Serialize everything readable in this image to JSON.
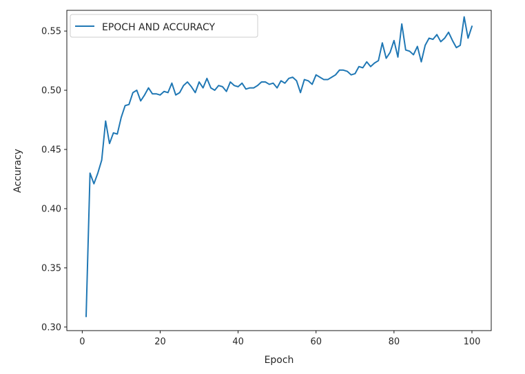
{
  "chart_data": {
    "type": "line",
    "xlabel": "Epoch",
    "ylabel": "Accuracy",
    "xlim": [
      -3.95,
      104.95
    ],
    "ylim": [
      0.297,
      0.5675
    ],
    "xticks": [
      0,
      20,
      40,
      60,
      80,
      100
    ],
    "yticks": [
      0.3,
      0.35,
      0.4,
      0.45,
      0.5,
      0.55
    ],
    "grid": false,
    "legend_position": "top-left",
    "series": [
      {
        "name": "EPOCH AND ACCURACY",
        "color": "#1f77b4",
        "x": [
          1,
          2,
          3,
          4,
          5,
          6,
          7,
          8,
          9,
          10,
          11,
          12,
          13,
          14,
          15,
          16,
          17,
          18,
          19,
          20,
          21,
          22,
          23,
          24,
          25,
          26,
          27,
          28,
          29,
          30,
          31,
          32,
          33,
          34,
          35,
          36,
          37,
          38,
          39,
          40,
          41,
          42,
          43,
          44,
          45,
          46,
          47,
          48,
          49,
          50,
          51,
          52,
          53,
          54,
          55,
          56,
          57,
          58,
          59,
          60,
          61,
          62,
          63,
          64,
          65,
          66,
          67,
          68,
          69,
          70,
          71,
          72,
          73,
          74,
          75,
          76,
          77,
          78,
          79,
          80,
          81,
          82,
          83,
          84,
          85,
          86,
          87,
          88,
          89,
          90,
          91,
          92,
          93,
          94,
          95,
          96,
          97,
          98,
          99,
          100
        ],
        "y": [
          0.309,
          0.43,
          0.421,
          0.43,
          0.441,
          0.474,
          0.455,
          0.464,
          0.463,
          0.477,
          0.487,
          0.488,
          0.498,
          0.5,
          0.491,
          0.496,
          0.502,
          0.497,
          0.497,
          0.496,
          0.499,
          0.498,
          0.506,
          0.496,
          0.498,
          0.504,
          0.507,
          0.503,
          0.498,
          0.507,
          0.502,
          0.51,
          0.502,
          0.5,
          0.504,
          0.503,
          0.499,
          0.507,
          0.504,
          0.503,
          0.506,
          0.501,
          0.502,
          0.502,
          0.504,
          0.507,
          0.507,
          0.505,
          0.506,
          0.502,
          0.508,
          0.506,
          0.51,
          0.511,
          0.508,
          0.498,
          0.509,
          0.508,
          0.505,
          0.513,
          0.511,
          0.509,
          0.509,
          0.511,
          0.513,
          0.517,
          0.517,
          0.516,
          0.513,
          0.514,
          0.52,
          0.519,
          0.524,
          0.52,
          0.523,
          0.525,
          0.54,
          0.527,
          0.532,
          0.542,
          0.528,
          0.556,
          0.534,
          0.533,
          0.53,
          0.537,
          0.524,
          0.538,
          0.544,
          0.543,
          0.547,
          0.541,
          0.544,
          0.549,
          0.542,
          0.536,
          0.538,
          0.562,
          0.544,
          0.554
        ]
      }
    ]
  }
}
